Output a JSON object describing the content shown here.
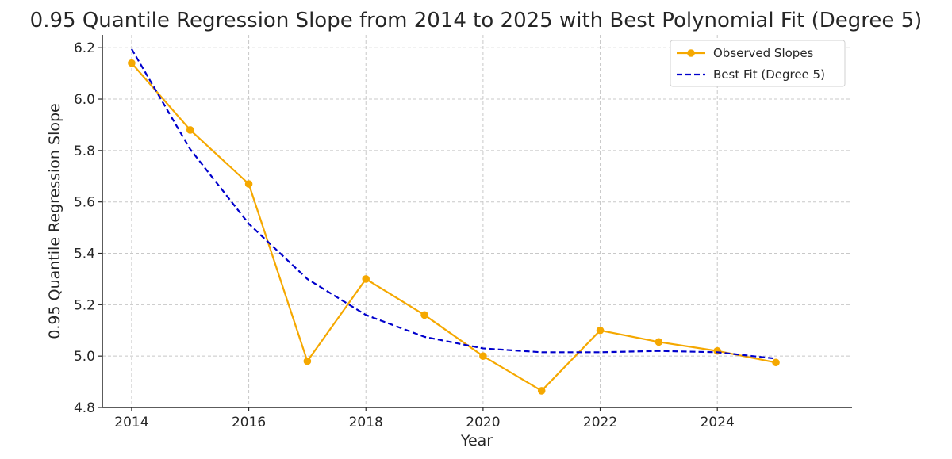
{
  "chart_data": {
    "type": "line",
    "title": "0.95 Quantile Regression Slope from 2014 to 2025 with Best Polynomial Fit (Degree 5)",
    "xlabel": "Year",
    "ylabel": "0.95 Quantile Regression Slope",
    "x": [
      2014,
      2015,
      2016,
      2017,
      2018,
      2019,
      2020,
      2021,
      2022,
      2023,
      2024,
      2025
    ],
    "xlim": [
      2013.5,
      2026.3
    ],
    "ylim": [
      4.8,
      6.25
    ],
    "xticks": [
      2014,
      2016,
      2018,
      2020,
      2022,
      2024
    ],
    "yticks": [
      4.8,
      5.0,
      5.2,
      5.4,
      5.6,
      5.8,
      6.0,
      6.2
    ],
    "grid": true,
    "legend_position": "top-right",
    "series": [
      {
        "name": "Observed Slopes",
        "style": "solid-with-markers",
        "color": "#f5a800",
        "values": [
          6.14,
          5.88,
          5.67,
          4.98,
          5.3,
          5.16,
          5.0,
          4.865,
          5.1,
          5.055,
          5.02,
          4.975
        ]
      },
      {
        "name": "Best Fit (Degree 5)",
        "style": "dashed",
        "color": "#0000cc",
        "values": [
          6.195,
          5.805,
          5.515,
          5.3,
          5.16,
          5.075,
          5.03,
          5.015,
          5.015,
          5.02,
          5.015,
          4.99
        ]
      }
    ]
  }
}
